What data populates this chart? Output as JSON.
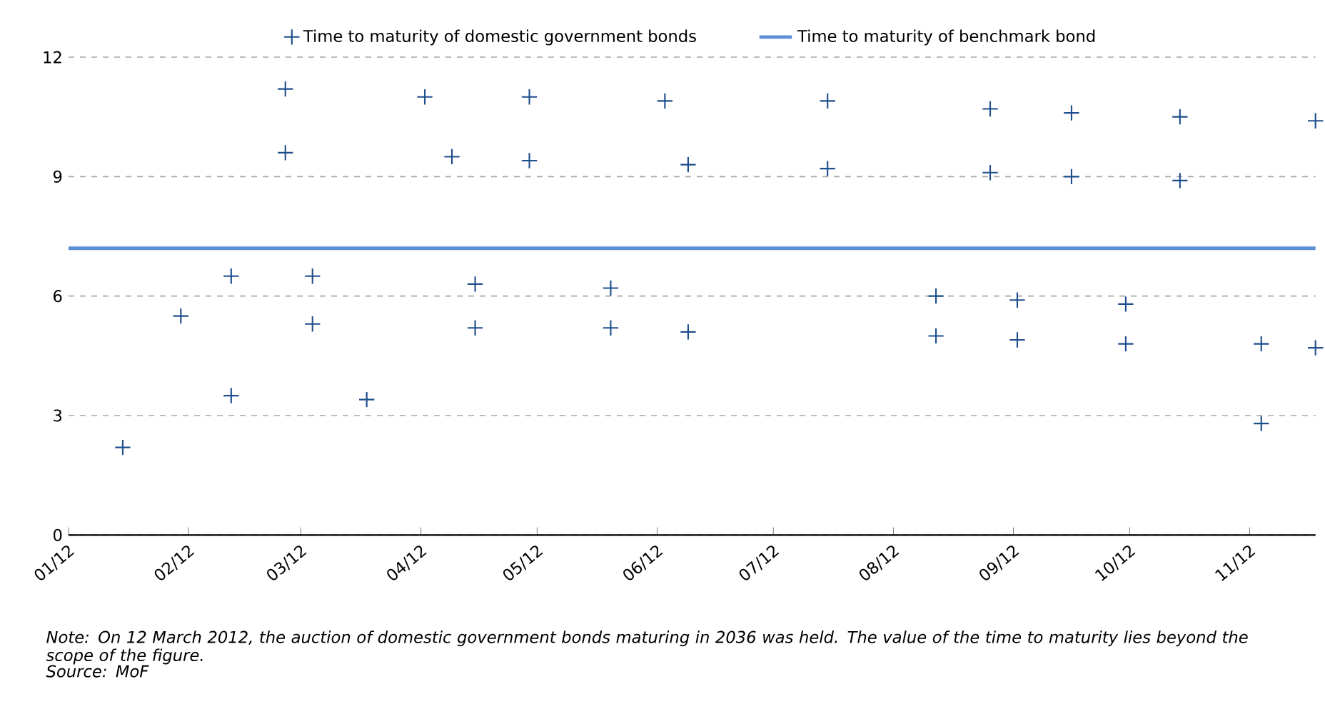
{
  "chart_data": {
    "type": "scatter",
    "xlim": [
      "2012-01-01",
      "2012-11-18"
    ],
    "xticks": [
      {
        "value": "2012-01-01",
        "label": "01/12"
      },
      {
        "value": "2012-02-01",
        "label": "02/12"
      },
      {
        "value": "2012-03-01",
        "label": "03/12"
      },
      {
        "value": "2012-04-01",
        "label": "04/12"
      },
      {
        "value": "2012-05-01",
        "label": "05/12"
      },
      {
        "value": "2012-06-01",
        "label": "06/12"
      },
      {
        "value": "2012-07-01",
        "label": "07/12"
      },
      {
        "value": "2012-08-01",
        "label": "08/12"
      },
      {
        "value": "2012-09-01",
        "label": "09/12"
      },
      {
        "value": "2012-10-01",
        "label": "10/12"
      },
      {
        "value": "2012-11-01",
        "label": "11/12"
      }
    ],
    "ylim": [
      0,
      12
    ],
    "yticks": [
      0,
      3,
      6,
      9,
      12
    ],
    "grid": "y",
    "legend": "top",
    "series": [
      {
        "name": "Time to maturity of domestic government bonds",
        "marker": "cross",
        "color": "#1f4e8c",
        "x": [
          "2012-01-15",
          "2012-01-30",
          "2012-02-12",
          "2012-02-12",
          "2012-02-26",
          "2012-02-26",
          "2012-03-04",
          "2012-03-04",
          "2012-03-18",
          "2012-04-02",
          "2012-04-09",
          "2012-04-15",
          "2012-04-15",
          "2012-04-29",
          "2012-04-29",
          "2012-05-20",
          "2012-05-20",
          "2012-06-03",
          "2012-06-09",
          "2012-06-09",
          "2012-07-15",
          "2012-07-15",
          "2012-08-12",
          "2012-08-12",
          "2012-08-26",
          "2012-08-26",
          "2012-09-02",
          "2012-09-02",
          "2012-09-16",
          "2012-09-16",
          "2012-09-30",
          "2012-09-30",
          "2012-10-14",
          "2012-10-14",
          "2012-11-04",
          "2012-11-04",
          "2012-11-18",
          "2012-11-18"
        ],
        "values": [
          2.2,
          5.5,
          6.5,
          3.5,
          11.2,
          9.6,
          6.5,
          5.3,
          3.4,
          11.0,
          9.5,
          6.3,
          5.2,
          11.0,
          9.4,
          6.2,
          5.2,
          10.9,
          9.3,
          5.1,
          10.9,
          9.2,
          6.0,
          5.0,
          10.7,
          9.1,
          5.9,
          4.9,
          10.6,
          9.0,
          5.8,
          4.8,
          10.5,
          8.9,
          4.8,
          2.8,
          10.4,
          4.7
        ]
      },
      {
        "name": "Time to maturity of benchmark bond",
        "type": "line",
        "marker": "none",
        "line_style": "solid",
        "color": "#5b8fd6",
        "x": [
          "2012-01-01",
          "2012-11-18"
        ],
        "values": [
          7.2,
          7.2
        ]
      }
    ],
    "annotations": [
      "Note: On 12 March 2012, the auction of domestic government bonds maturing in 2036 was held. The value of the time to maturity lies beyond the scope of the figure.",
      "Source: MoF"
    ]
  }
}
